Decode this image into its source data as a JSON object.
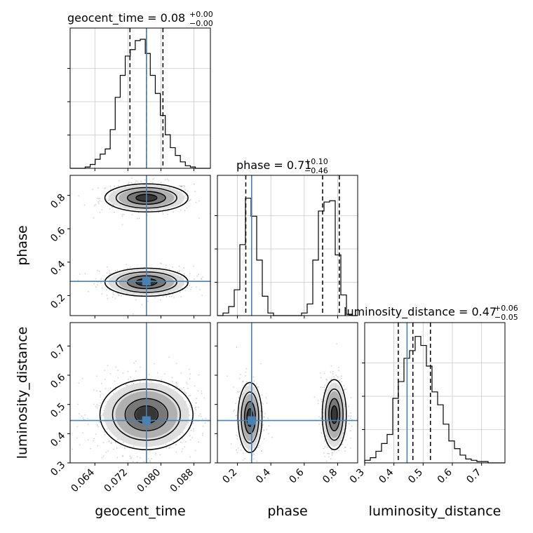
{
  "chart_data": {
    "type": "corner",
    "grid": true,
    "colors": {
      "truth": "#4682b4",
      "hist": "#000000",
      "quantile": "#000000",
      "grid": "#c8c8c8",
      "density": "#000000"
    },
    "parameters": [
      {
        "name": "geocent_time",
        "label": "geocent_time",
        "range": [
          0.058,
          0.092
        ],
        "ticks": [
          0.064,
          0.072,
          0.08,
          0.088
        ],
        "tick_labels": [
          "0.064",
          "0.072",
          "0.080",
          "0.088"
        ],
        "truth": 0.0765,
        "title_main": "geocent_time = 0.08",
        "title_plus": "+0.00",
        "title_minus": "−0.00",
        "quantiles": [
          0.0725,
          0.0765,
          0.0805
        ],
        "hist_heights": [
          0,
          0,
          0,
          0.01,
          0.03,
          0.07,
          0.11,
          0.15,
          0.3,
          0.55,
          0.72,
          0.87,
          0.92,
          0.99,
          1.0,
          0.89,
          0.72,
          0.58,
          0.41,
          0.26,
          0.16,
          0.1,
          0.05,
          0.02,
          0.01,
          0,
          0,
          0
        ]
      },
      {
        "name": "phase",
        "label": "phase",
        "range": [
          0.08,
          0.92
        ],
        "ticks": [
          0.2,
          0.4,
          0.6,
          0.8
        ],
        "tick_labels": [
          "0.2",
          "0.4",
          "0.6",
          "0.8"
        ],
        "truth": 0.285,
        "title_main": "phase = 0.71",
        "title_plus": "+0.10",
        "title_minus": "−0.46",
        "quantiles": [
          0.25,
          0.71,
          0.81
        ],
        "hist_heights": [
          0,
          0.02,
          0.07,
          0.2,
          0.55,
          0.91,
          0.77,
          0.43,
          0.15,
          0.02,
          0,
          0,
          0,
          0,
          0,
          0.02,
          0.09,
          0.43,
          0.81,
          0.88,
          0.89,
          0.47,
          0.16,
          0.01,
          0
        ]
      },
      {
        "name": "luminosity_distance",
        "label": "luminosity_distance",
        "range": [
          0.3,
          0.78
        ],
        "ticks": [
          0.3,
          0.4,
          0.5,
          0.6,
          0.7
        ],
        "tick_labels": [
          "0.3",
          "0.4",
          "0.5",
          "0.6",
          "0.7"
        ],
        "truth": 0.445,
        "title_main": "luminosity_distance = 0.47",
        "title_plus": "+0.06",
        "title_minus": "−0.05",
        "quantiles": [
          0.415,
          0.465,
          0.525
        ],
        "hist_heights": [
          0.02,
          0.04,
          0.09,
          0.15,
          0.22,
          0.5,
          0.63,
          0.81,
          0.87,
          0.98,
          0.91,
          0.75,
          0.55,
          0.45,
          0.3,
          0.17,
          0.11,
          0.06,
          0.03,
          0.02,
          0.01,
          0.01,
          0,
          0,
          0
        ]
      }
    ],
    "pairs": [
      {
        "x": "geocent_time",
        "y": "phase",
        "modes": [
          {
            "cx": 0.0765,
            "cy": 0.785,
            "sx": 0.0042,
            "sy": 0.035,
            "w": 0.5
          },
          {
            "cx": 0.0765,
            "cy": 0.28,
            "sx": 0.0042,
            "sy": 0.035,
            "w": 0.5
          }
        ]
      },
      {
        "x": "geocent_time",
        "y": "luminosity_distance",
        "modes": [
          {
            "cx": 0.0765,
            "cy": 0.465,
            "sx": 0.0047,
            "sy": 0.05,
            "w": 1.0
          }
        ]
      },
      {
        "x": "phase",
        "y": "luminosity_distance",
        "modes": [
          {
            "cx": 0.275,
            "cy": 0.455,
            "sx": 0.03,
            "sy": 0.05,
            "w": 0.5
          },
          {
            "cx": 0.78,
            "cy": 0.465,
            "sx": 0.03,
            "sy": 0.05,
            "w": 0.5
          }
        ]
      }
    ]
  }
}
